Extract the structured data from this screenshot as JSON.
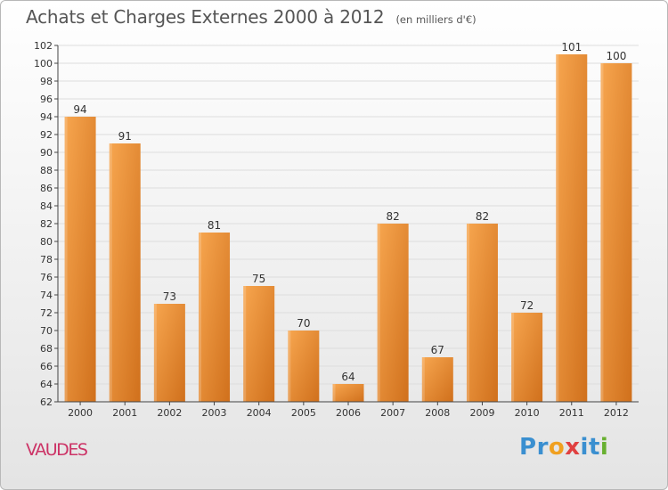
{
  "title": "Achats et Charges Externes 2000 à 2012",
  "subtitle": "(en milliers d'€)",
  "commune": "VAUDES",
  "logo": {
    "text": "Proxiti",
    "letters": [
      {
        "ch": "P",
        "color": "#3a8fd0"
      },
      {
        "ch": "r",
        "color": "#3a8fd0"
      },
      {
        "ch": "o",
        "color": "#f0a020"
      },
      {
        "ch": "x",
        "color": "#e04040"
      },
      {
        "ch": "i",
        "color": "#3a8fd0"
      },
      {
        "ch": "t",
        "color": "#3a8fd0"
      },
      {
        "ch": "i",
        "color": "#68b030"
      }
    ]
  },
  "colors": {
    "bar_light": "#f7a64f",
    "bar_dark": "#d0701c",
    "axis": "#444444",
    "grid": "#dddddd"
  },
  "chart_data": {
    "type": "bar",
    "title": "Achats et Charges Externes 2000 à 2012",
    "subtitle": "(en milliers d'€)",
    "categories": [
      "2000",
      "2001",
      "2002",
      "2003",
      "2004",
      "2005",
      "2006",
      "2007",
      "2008",
      "2009",
      "2010",
      "2011",
      "2012"
    ],
    "values": [
      94,
      91,
      73,
      81,
      75,
      70,
      64,
      82,
      67,
      82,
      72,
      101,
      100
    ],
    "ylim": [
      62,
      102
    ],
    "yticks": [
      62,
      64,
      66,
      68,
      70,
      72,
      74,
      76,
      78,
      80,
      82,
      84,
      86,
      88,
      90,
      92,
      94,
      96,
      98,
      100,
      102
    ],
    "grid": true,
    "data_labels": true,
    "xlabel": "",
    "ylabel": ""
  }
}
